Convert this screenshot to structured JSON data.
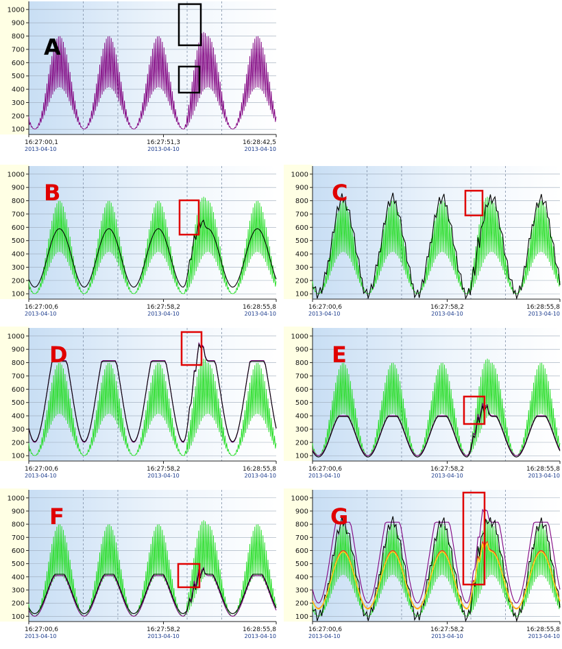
{
  "chart_data": [
    {
      "type": "line",
      "label": "A",
      "label_color": "#000000",
      "yticks": [
        100,
        200,
        300,
        400,
        500,
        600,
        700,
        800,
        900,
        1000
      ],
      "ylim": [
        60,
        1030
      ],
      "x_labels": [
        {
          "time": "16:27:00,1",
          "date": "2013-04-10"
        },
        {
          "time": "16:27:51,3",
          "date": "2013-04-10"
        },
        {
          "time": "16:28:42,5",
          "date": "2013-04-10"
        }
      ],
      "grid": true,
      "series": [
        {
          "color": "#800080",
          "kind": "raw",
          "cycles": 5,
          "min": 100,
          "max": 800,
          "spike_max": 1000
        }
      ],
      "highlight_boxes": [
        {
          "color": "#000000",
          "y_range": [
            750,
            1050
          ]
        },
        {
          "color": "#000000",
          "y_range": [
            400,
            600
          ]
        }
      ]
    },
    {
      "type": "line",
      "label": "B",
      "label_color": "#e00000",
      "yticks": [
        100,
        200,
        300,
        400,
        500,
        600,
        700,
        800,
        900,
        1000
      ],
      "ylim": [
        60,
        1030
      ],
      "x_labels": [
        {
          "time": "16:27:00,6",
          "date": "2013-04-10"
        },
        {
          "time": "16:27:58,2",
          "date": "2013-04-10"
        },
        {
          "time": "16:28:55,8",
          "date": "2013-04-10"
        }
      ],
      "grid": true,
      "series": [
        {
          "color": "#22dd22",
          "kind": "raw",
          "cycles": 5,
          "min": 100,
          "max": 800,
          "spike_max": 1000
        },
        {
          "color": "#000000",
          "kind": "envelope-mid",
          "min": 150,
          "max": 590,
          "spike_max": 760
        }
      ],
      "highlight_boxes": [
        {
          "color": "#e00000",
          "y_range": [
            580,
            830
          ]
        }
      ]
    },
    {
      "type": "line",
      "label": "C",
      "label_color": "#e00000",
      "yticks": [
        100,
        200,
        300,
        400,
        500,
        600,
        700,
        800,
        900,
        1000
      ],
      "ylim": [
        60,
        1030
      ],
      "x_labels": [
        {
          "time": "16:27:00,6",
          "date": "2013-04-10"
        },
        {
          "time": "16:27:58,2",
          "date": "2013-04-10"
        },
        {
          "time": "16:28:55,8",
          "date": "2013-04-10"
        }
      ],
      "grid": true,
      "series": [
        {
          "color": "#22dd22",
          "kind": "raw",
          "cycles": 5,
          "min": 100,
          "max": 800,
          "spike_max": 1000
        },
        {
          "color": "#000000",
          "kind": "jagged",
          "min": 100,
          "max": 810,
          "spike_max": 850
        }
      ],
      "highlight_boxes": [
        {
          "color": "#e00000",
          "y_range": [
            700,
            880
          ]
        }
      ]
    },
    {
      "type": "line",
      "label": "D",
      "label_color": "#e00000",
      "yticks": [
        100,
        200,
        300,
        400,
        500,
        600,
        700,
        800,
        900,
        1000
      ],
      "ylim": [
        60,
        1030
      ],
      "x_labels": [
        {
          "time": "16:27:00,6",
          "date": "2013-04-10"
        },
        {
          "time": "16:27:58,2",
          "date": "2013-04-10"
        },
        {
          "time": "16:28:55,8",
          "date": "2013-04-10"
        }
      ],
      "grid": true,
      "series": [
        {
          "color": "#22dd22",
          "kind": "raw",
          "cycles": 5,
          "min": 100,
          "max": 800,
          "spike_max": 1000
        },
        {
          "color": "#800080",
          "kind": "upper-envelope",
          "min": 200,
          "max": 815,
          "spike_max": 1000
        },
        {
          "color": "#000000",
          "kind": "upper-envelope",
          "min": 205,
          "max": 810,
          "spike_max": 990
        }
      ],
      "highlight_boxes": [
        {
          "color": "#e00000",
          "y_range": [
            800,
            1030
          ]
        }
      ]
    },
    {
      "type": "line",
      "label": "E",
      "label_color": "#e00000",
      "yticks": [
        100,
        200,
        300,
        400,
        500,
        600,
        700,
        800,
        900,
        1000
      ],
      "ylim": [
        60,
        1030
      ],
      "x_labels": [
        {
          "time": "16:27:00,6",
          "date": "2013-04-10"
        },
        {
          "time": "16:27:58,2",
          "date": "2013-04-10"
        },
        {
          "time": "16:28:55,8",
          "date": "2013-04-10"
        }
      ],
      "grid": true,
      "series": [
        {
          "color": "#22dd22",
          "kind": "raw",
          "cycles": 5,
          "min": 100,
          "max": 800,
          "spike_max": 1000
        },
        {
          "color": "#800080",
          "kind": "lower-envelope",
          "min": 100,
          "max": 400,
          "spike_max": 540
        },
        {
          "color": "#000000",
          "kind": "lower-envelope",
          "min": 90,
          "max": 395,
          "spike_max": 520
        }
      ],
      "highlight_boxes": [
        {
          "color": "#e00000",
          "y_range": [
            370,
            580
          ]
        }
      ]
    },
    {
      "type": "line",
      "label": "F",
      "label_color": "#e00000",
      "yticks": [
        100,
        200,
        300,
        400,
        500,
        600,
        700,
        800,
        900,
        1000
      ],
      "ylim": [
        60,
        1030
      ],
      "x_labels": [
        {
          "time": "16:27:00,6",
          "date": "2013-04-10"
        },
        {
          "time": "16:27:58,2",
          "date": "2013-04-10"
        },
        {
          "time": "16:28:55,8",
          "date": "2013-04-10"
        }
      ],
      "grid": true,
      "series": [
        {
          "color": "#22dd22",
          "kind": "raw",
          "cycles": 5,
          "min": 100,
          "max": 800,
          "spike_max": 1000
        },
        {
          "color": "#800080",
          "kind": "lower-envelope",
          "min": 100,
          "max": 410,
          "spike_max": 500
        },
        {
          "color": "#000000",
          "kind": "lower-envelope",
          "min": 120,
          "max": 420,
          "spike_max": 470
        }
      ],
      "highlight_boxes": [
        {
          "color": "#e00000",
          "y_range": [
            360,
            530
          ]
        }
      ]
    },
    {
      "type": "line",
      "label": "G",
      "label_color": "#e00000",
      "yticks": [
        100,
        200,
        300,
        400,
        500,
        600,
        700,
        800,
        900,
        1000
      ],
      "ylim": [
        60,
        1030
      ],
      "x_labels": [
        {
          "time": "16:27:00,6",
          "date": "2013-04-10"
        },
        {
          "time": "16:27:58,2",
          "date": "2013-04-10"
        },
        {
          "time": "16:28:55,8",
          "date": "2013-04-10"
        }
      ],
      "grid": true,
      "series": [
        {
          "color": "#22dd22",
          "kind": "raw",
          "cycles": 5,
          "min": 100,
          "max": 800,
          "spike_max": 1000
        },
        {
          "color": "#800080",
          "kind": "upper-envelope",
          "min": 200,
          "max": 815,
          "spike_max": 960
        },
        {
          "color": "#000000",
          "kind": "jagged",
          "min": 100,
          "max": 810,
          "spike_max": 960
        },
        {
          "color": "#ff2020",
          "kind": "envelope-mid",
          "min": 160,
          "max": 600,
          "spike_max": 780
        },
        {
          "color": "#ffd21a",
          "kind": "envelope-mid",
          "min": 155,
          "max": 590,
          "spike_max": 760
        }
      ],
      "highlight_boxes": [
        {
          "color": "#e00000",
          "y_range": [
            400,
            1060
          ]
        }
      ]
    }
  ]
}
